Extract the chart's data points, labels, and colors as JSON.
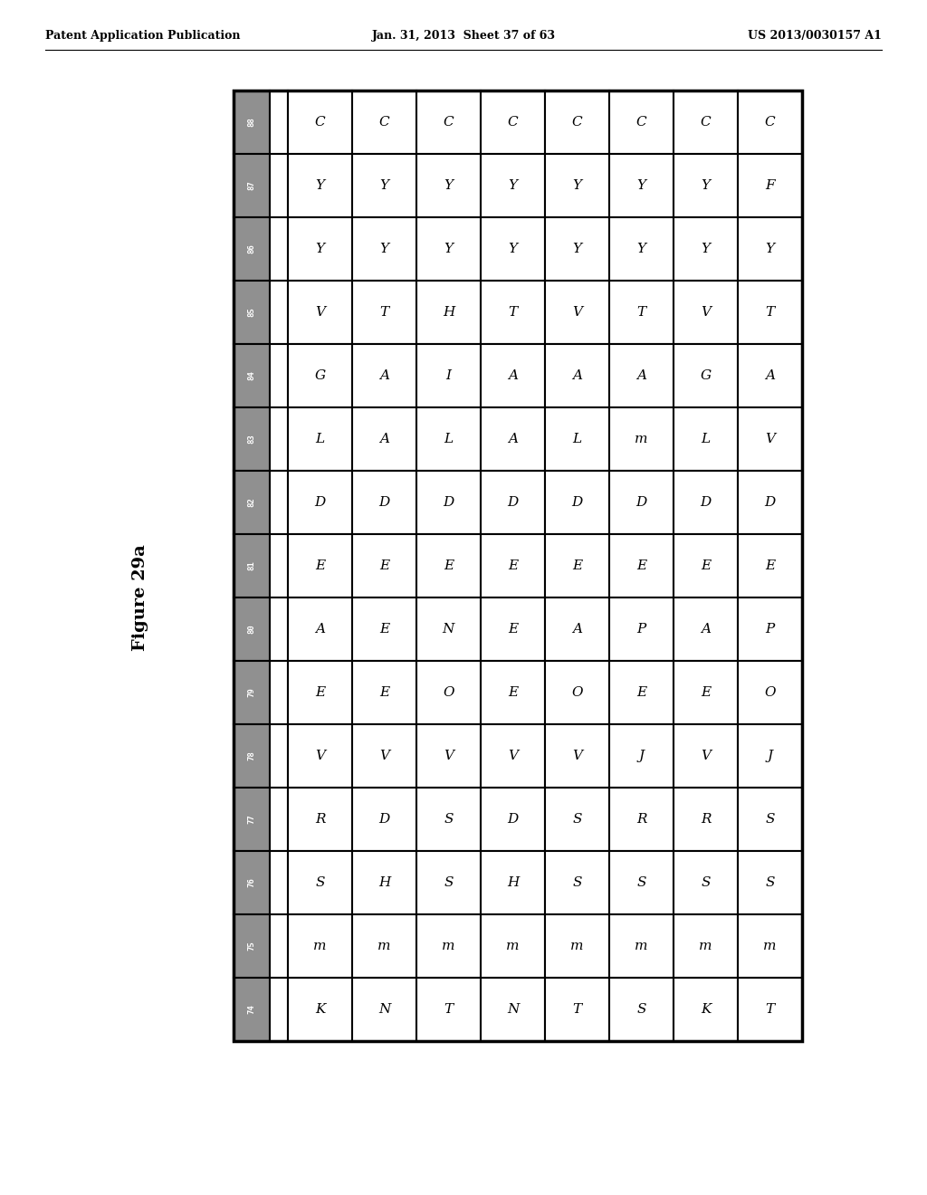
{
  "title_left": "Patent Application Publication",
  "title_mid": "Jan. 31, 2013  Sheet 37 of 63",
  "title_right": "US 2013/0030157 A1",
  "figure_label": "Figure 29a",
  "row_headers": [
    "88",
    "87",
    "86",
    "85",
    "84",
    "83",
    "82",
    "81",
    "80",
    "79",
    "78",
    "77",
    "76",
    "75",
    "74"
  ],
  "table_data": [
    [
      "C",
      "C",
      "C",
      "C",
      "C",
      "C",
      "C",
      "C"
    ],
    [
      "Y",
      "Y",
      "Y",
      "Y",
      "Y",
      "Y",
      "Y",
      "F"
    ],
    [
      "Y",
      "Y",
      "Y",
      "Y",
      "Y",
      "Y",
      "Y",
      "Y"
    ],
    [
      "V",
      "T",
      "H",
      "T",
      "V",
      "T",
      "V",
      "T"
    ],
    [
      "G",
      "A",
      "I",
      "A",
      "A",
      "A",
      "G",
      "A"
    ],
    [
      "L",
      "A",
      "L",
      "A",
      "L",
      "m",
      "L",
      "V"
    ],
    [
      "D",
      "D",
      "D",
      "D",
      "D",
      "D",
      "D",
      "D"
    ],
    [
      "E",
      "E",
      "E",
      "E",
      "E",
      "E",
      "E",
      "E"
    ],
    [
      "A",
      "E",
      "N",
      "E",
      "A",
      "P",
      "A",
      "P"
    ],
    [
      "E",
      "E",
      "O",
      "E",
      "O",
      "E",
      "E",
      "O"
    ],
    [
      "V",
      "V",
      "V",
      "V",
      "V",
      "J",
      "V",
      "J"
    ],
    [
      "R",
      "D",
      "S",
      "D",
      "S",
      "R",
      "R",
      "S"
    ],
    [
      "S",
      "H",
      "S",
      "H",
      "S",
      "S",
      "S",
      "S"
    ],
    [
      "m",
      "m",
      "m",
      "m",
      "m",
      "m",
      "m",
      "m"
    ],
    [
      "K",
      "N",
      "T",
      "N",
      "T",
      "S",
      "K",
      "T"
    ]
  ],
  "header_bg": "#909090",
  "header_text_color": "#ffffff",
  "cell_bg": "#ffffff",
  "cell_text_color": "#000000",
  "border_color": "#000000",
  "fig_width": 10.24,
  "fig_height": 13.2
}
